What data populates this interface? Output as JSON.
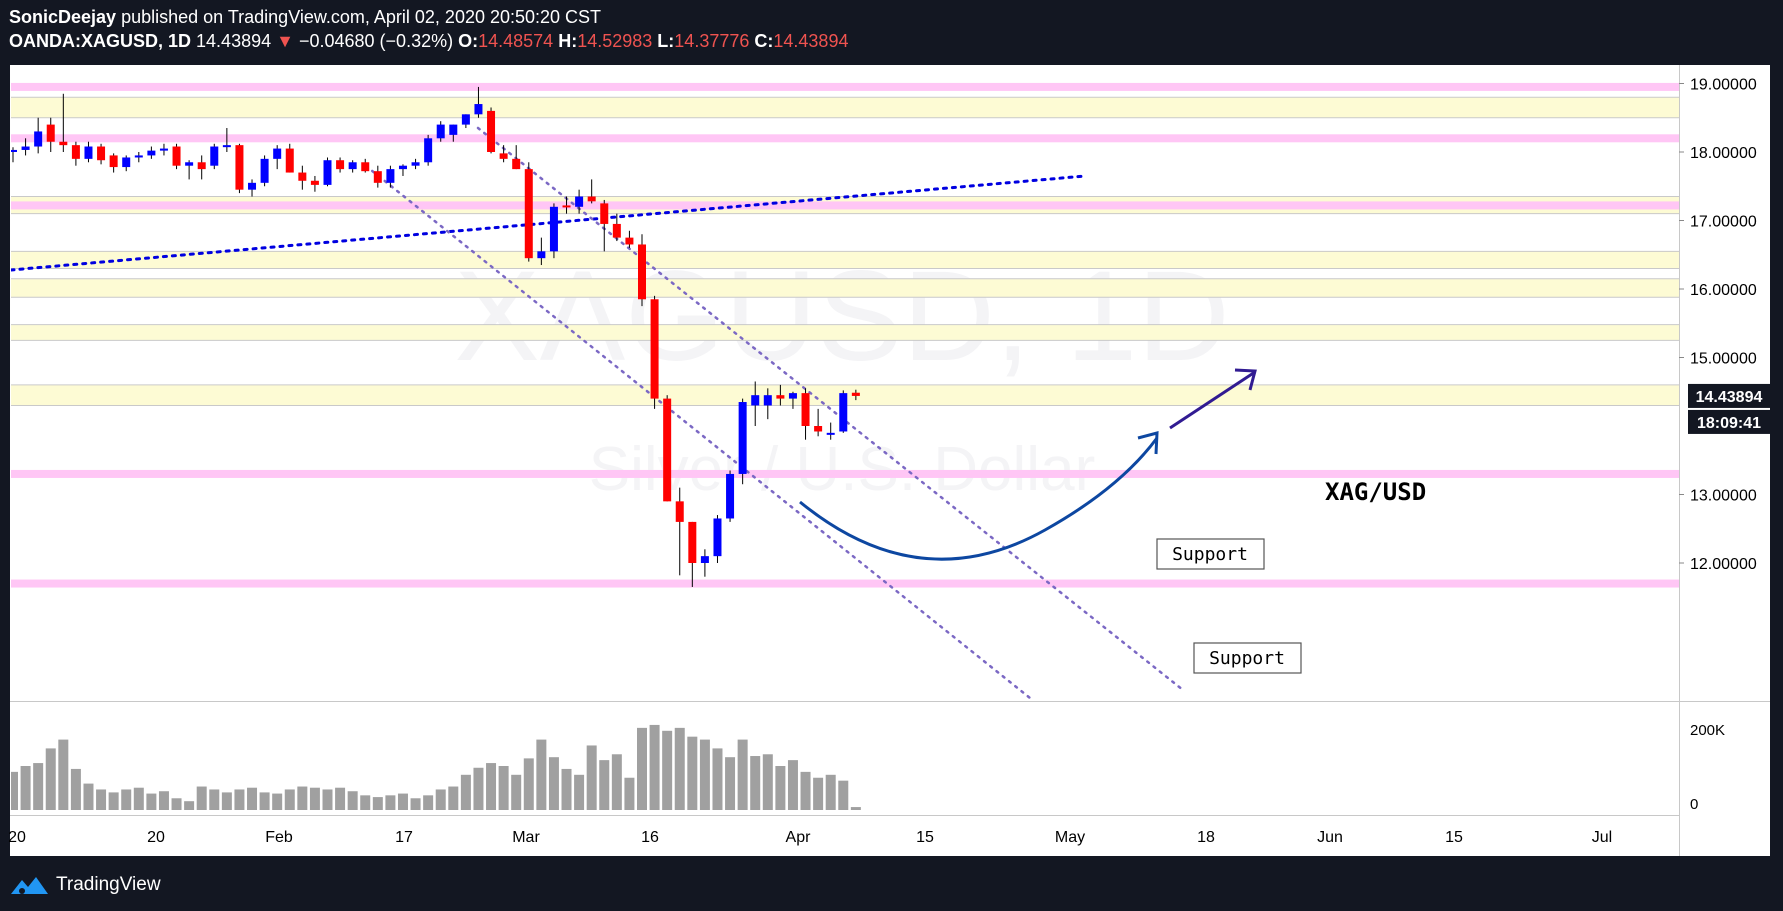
{
  "header": {
    "author": "SonicDeejay",
    "published_text": " published on TradingView.com, April 02, 2020 20:50:20 CST",
    "symbol": "OANDA:XAGUSD, 1D",
    "last": "14.43894",
    "change_arrow": "▼",
    "change": "−0.04680 (−0.32%)",
    "o_label": "O:",
    "o": "14.48574",
    "h_label": "H:",
    "h": "14.52983",
    "l_label": "L:",
    "l": "14.37776",
    "c_label": "C:",
    "c": "14.43894"
  },
  "footer": {
    "brand": "TradingView",
    "logo_icon": "tradingview-logo-icon"
  },
  "colors": {
    "up": "#0000ff",
    "down": "#ff0000",
    "resistance_band": "#fdfbd4",
    "support_line": "#ffc6f5",
    "curve": "#0d47a1",
    "trendline": "#0000e0",
    "channel": "#7b68c4",
    "volume": "#a0a0a0",
    "price_tag_bg": "#131722"
  },
  "chart_data": {
    "type": "candlestick",
    "watermark": {
      "title": "XAGUSD, 1D",
      "subtitle": "Silver / U.S. Dollar"
    },
    "ylim": [
      11.3,
      19.2
    ],
    "y_ticks": [
      "19.00000",
      "18.00000",
      "17.00000",
      "16.00000",
      "15.00000",
      "13.00000",
      "12.00000"
    ],
    "price_tag": "14.43894",
    "countdown_tag": "18:09:41",
    "x_ticks": [
      "20",
      "20",
      "Feb",
      "17",
      "Mar",
      "16",
      "Apr",
      "15",
      "May",
      "18",
      "Jun",
      "15",
      "Jul"
    ],
    "volume_ticks": [
      "200K",
      "0"
    ],
    "ohlc": [
      [
        18.0,
        18.07,
        17.85,
        18.03
      ],
      [
        18.03,
        18.2,
        17.95,
        18.08
      ],
      [
        18.08,
        18.5,
        17.98,
        18.3
      ],
      [
        18.4,
        18.5,
        18.0,
        18.15
      ],
      [
        18.15,
        18.85,
        18.0,
        18.1
      ],
      [
        18.1,
        18.15,
        17.8,
        17.9
      ],
      [
        17.9,
        18.15,
        17.85,
        18.08
      ],
      [
        18.08,
        18.12,
        17.82,
        17.88
      ],
      [
        17.95,
        17.98,
        17.7,
        17.78
      ],
      [
        17.78,
        17.95,
        17.72,
        17.92
      ],
      [
        17.92,
        18.0,
        17.85,
        17.95
      ],
      [
        17.95,
        18.08,
        17.9,
        18.02
      ],
      [
        18.02,
        18.12,
        17.95,
        18.05
      ],
      [
        18.08,
        18.12,
        17.75,
        17.8
      ],
      [
        17.8,
        17.88,
        17.6,
        17.85
      ],
      [
        17.85,
        17.95,
        17.6,
        17.75
      ],
      [
        17.8,
        18.12,
        17.75,
        18.08
      ],
      [
        18.08,
        18.35,
        18.0,
        18.1
      ],
      [
        18.1,
        18.12,
        17.4,
        17.45
      ],
      [
        17.45,
        17.6,
        17.35,
        17.55
      ],
      [
        17.55,
        17.95,
        17.5,
        17.9
      ],
      [
        17.9,
        18.1,
        17.75,
        18.05
      ],
      [
        18.05,
        18.12,
        17.7,
        17.7
      ],
      [
        17.7,
        17.8,
        17.45,
        17.58
      ],
      [
        17.58,
        17.65,
        17.42,
        17.52
      ],
      [
        17.52,
        17.92,
        17.5,
        17.88
      ],
      [
        17.88,
        17.92,
        17.7,
        17.75
      ],
      [
        17.75,
        17.88,
        17.7,
        17.85
      ],
      [
        17.85,
        17.9,
        17.7,
        17.72
      ],
      [
        17.72,
        17.8,
        17.48,
        17.55
      ],
      [
        17.55,
        17.8,
        17.48,
        17.75
      ],
      [
        17.75,
        17.82,
        17.65,
        17.8
      ],
      [
        17.8,
        17.9,
        17.75,
        17.85
      ],
      [
        17.85,
        18.25,
        17.8,
        18.2
      ],
      [
        18.2,
        18.45,
        18.15,
        18.4
      ],
      [
        18.25,
        18.4,
        18.15,
        18.4
      ],
      [
        18.4,
        18.55,
        18.35,
        18.55
      ],
      [
        18.55,
        18.95,
        18.5,
        18.7
      ],
      [
        18.6,
        18.65,
        17.98,
        18.0
      ],
      [
        17.98,
        18.1,
        17.85,
        17.9
      ],
      [
        17.9,
        18.1,
        17.75,
        17.75
      ],
      [
        17.75,
        17.85,
        16.4,
        16.45
      ],
      [
        16.45,
        16.75,
        16.35,
        16.55
      ],
      [
        16.55,
        17.25,
        16.45,
        17.2
      ],
      [
        17.22,
        17.35,
        17.1,
        17.2
      ],
      [
        17.2,
        17.45,
        17.1,
        17.35
      ],
      [
        17.35,
        17.6,
        17.25,
        17.28
      ],
      [
        17.25,
        17.3,
        16.55,
        16.95
      ],
      [
        16.95,
        17.1,
        16.7,
        16.75
      ],
      [
        16.75,
        16.85,
        16.6,
        16.65
      ],
      [
        16.65,
        16.8,
        15.75,
        15.85
      ],
      [
        15.85,
        15.9,
        14.25,
        14.4
      ],
      [
        14.4,
        14.45,
        12.9,
        12.9
      ],
      [
        12.9,
        13.1,
        11.82,
        12.6
      ],
      [
        12.6,
        12.6,
        11.65,
        12.0
      ],
      [
        12.0,
        12.2,
        11.8,
        12.1
      ],
      [
        12.1,
        12.7,
        12.0,
        12.65
      ],
      [
        12.65,
        13.35,
        12.6,
        13.3
      ],
      [
        13.3,
        14.4,
        13.15,
        14.35
      ],
      [
        14.3,
        14.65,
        14.0,
        14.45
      ],
      [
        14.3,
        14.55,
        14.1,
        14.45
      ],
      [
        14.45,
        14.6,
        14.3,
        14.4
      ],
      [
        14.4,
        14.5,
        14.25,
        14.48
      ],
      [
        14.48,
        14.55,
        13.8,
        14.0
      ],
      [
        14.0,
        14.25,
        13.85,
        13.92
      ],
      [
        13.9,
        14.05,
        13.8,
        13.9
      ],
      [
        13.92,
        14.52,
        13.9,
        14.48
      ],
      [
        14.48574,
        14.52983,
        14.37776,
        14.43894
      ]
    ],
    "volume": [
      65,
      75,
      80,
      105,
      120,
      70,
      45,
      35,
      30,
      35,
      38,
      28,
      32,
      20,
      15,
      40,
      35,
      30,
      35,
      38,
      30,
      28,
      35,
      40,
      38,
      35,
      38,
      32,
      25,
      22,
      25,
      28,
      20,
      25,
      35,
      40,
      60,
      72,
      80,
      75,
      60,
      88,
      120,
      90,
      70,
      60,
      110,
      85,
      95,
      55,
      140,
      145,
      135,
      140,
      125,
      120,
      105,
      90,
      120,
      92,
      95,
      75,
      85,
      65,
      55,
      60,
      50,
      5
    ],
    "resistance_zones": [
      [
        18.5,
        18.8
      ],
      [
        17.1,
        17.35
      ],
      [
        16.3,
        16.55
      ],
      [
        15.88,
        16.15
      ],
      [
        15.25,
        15.48
      ],
      [
        14.3,
        14.6
      ]
    ],
    "support_levels": [
      18.95,
      18.2,
      17.22,
      13.3,
      11.7
    ],
    "annotations": [
      {
        "text": "XAG/USD"
      },
      {
        "text": "Support"
      },
      {
        "text": "Support"
      }
    ]
  }
}
